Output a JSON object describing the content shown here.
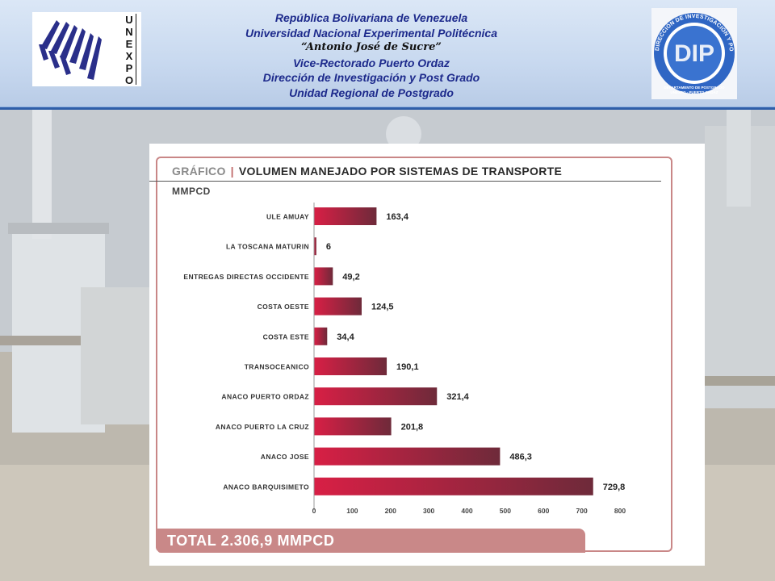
{
  "header": {
    "lines": [
      "República Bolivariana de Venezuela",
      "Universidad Nacional Experimental Politécnica",
      "“Antonio José de Sucre”",
      "Vice-Rectorado Puerto Ordaz",
      "Dirección de Investigación y Post Grado",
      "Unidad Regional de Postgrado"
    ],
    "left_logo_letters": [
      "U",
      "N",
      "E",
      "X",
      "P",
      "O"
    ],
    "right_logo_ring_text": "DIRECCIÓN DE INVESTIGACIÓN Y POSTGRADO",
    "right_logo_mark": "DIP",
    "right_logo_sub1": "DEPARTAMENTO DE POSTGRADO",
    "right_logo_sub2": "UNEXPO - PUERTO ORDAZ"
  },
  "chart": {
    "tag": "GRÁFICO",
    "separator": "|",
    "heading": "VOLUMEN MANEJADO POR SISTEMAS DE TRANSPORTE",
    "unit": "MMPCD",
    "total": "TOTAL 2.306,9 MMPCD"
  },
  "chart_data": {
    "type": "bar",
    "orientation": "horizontal",
    "title": "VOLUMEN MANEJADO POR SISTEMAS DE TRANSPORTE",
    "ylabel": "MMPCD",
    "categories": [
      "ULE AMUAY",
      "LA TOSCANA MATURIN",
      "ENTREGAS DIRECTAS OCCIDENTE",
      "COSTA OESTE",
      "COSTA ESTE",
      "TRANSOCEANICO",
      "ANACO PUERTO ORDAZ",
      "ANACO PUERTO LA CRUZ",
      "ANACO JOSE",
      "ANACO BARQUISIMETO"
    ],
    "values": [
      163.4,
      6,
      49.2,
      124.5,
      34.4,
      190.1,
      321.4,
      201.8,
      486.3,
      729.8
    ],
    "value_labels": [
      "163,4",
      "6",
      "49,2",
      "124,5",
      "34,4",
      "190,1",
      "321,4",
      "201,8",
      "486,3",
      "729,8"
    ],
    "xlim": [
      0,
      800
    ],
    "xticks": [
      "0",
      "100",
      "200",
      "300",
      "400",
      "500",
      "600",
      "700",
      "800"
    ],
    "bar_color_start": "#d81f45",
    "bar_color_end": "#6e2a3a",
    "grid": false,
    "legend": "none"
  }
}
